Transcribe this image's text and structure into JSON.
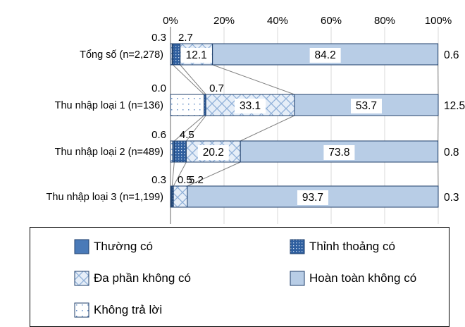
{
  "chart_data": {
    "type": "bar",
    "orientation": "horizontal",
    "stacked": "percent",
    "title": "",
    "xlabel": "",
    "ylabel": "",
    "xlim": [
      0,
      100
    ],
    "x_ticks": [
      "0%",
      "20%",
      "40%",
      "60%",
      "80%",
      "100%"
    ],
    "grid": true,
    "legend_position": "bottom",
    "categories": [
      "Tổng số (n=2,278)",
      "Thu nhập loại 1 (n=136)",
      "Thu nhập loại 2 (n=489)",
      "Thu nhập loại 3 (n=1,199)"
    ],
    "series": [
      {
        "name": "Thường có",
        "values": [
          0.3,
          0.0,
          0.6,
          0.3
        ],
        "labels": [
          "0.3",
          "0.0",
          "0.6",
          "0.3"
        ],
        "color": "#4a7ab8"
      },
      {
        "name": "Thỉnh thoảng có",
        "values": [
          2.7,
          0.7,
          4.5,
          0.5
        ],
        "labels": [
          "2.7",
          "0.7",
          "4.5",
          "0.5"
        ],
        "color": "#4a7ab8"
      },
      {
        "name": "Đa phần không có",
        "values": [
          12.1,
          33.1,
          20.2,
          5.2
        ],
        "labels": [
          "12.1",
          "33.1",
          "20.2",
          "5.2"
        ],
        "color": "#b8cde6"
      },
      {
        "name": "Hoàn toàn không có",
        "values": [
          84.2,
          53.7,
          73.8,
          93.7
        ],
        "labels": [
          "84.2",
          "53.7",
          "73.8",
          "93.7"
        ],
        "color": "#b8cde6"
      },
      {
        "name": "Không trả lời",
        "values": [
          0.6,
          12.5,
          0.8,
          0.3
        ],
        "labels": [
          "0.6",
          "12.5",
          "0.8",
          "0.3"
        ],
        "color": "#ffffff"
      }
    ]
  }
}
